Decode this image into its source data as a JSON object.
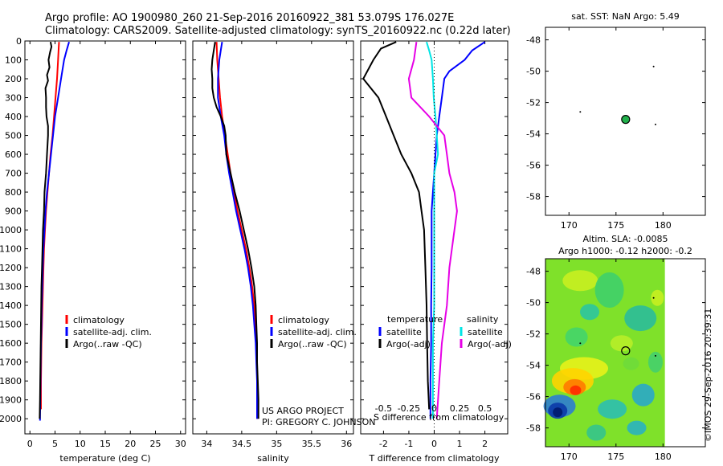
{
  "header": {
    "line1": "Argo profile: AO 1900980_260 21-Sep-2016 20160922_381 53.079S 176.027E",
    "line2": "Climatology: CARS2009. Satellite-adjusted climatology: synTS_20160922.nc (0.22d later)"
  },
  "watermark": "©IMOS 29-Sep-2016 20:39:31",
  "credit": {
    "line1": "US ARGO PROJECT",
    "line2": "PI: GREGORY C. JOHNSON"
  },
  "colors": {
    "climatology": "#ff0000",
    "satellite": "#0000ff",
    "argo": "#000000",
    "sat_diff_salinity": "#00e5e5",
    "argo_diff_salinity": "#e600e6"
  },
  "chart_data": [
    {
      "id": "temperature",
      "type": "line",
      "xlabel": "temperature (deg C)",
      "xlim": [
        -1,
        31
      ],
      "ylim": [
        2080,
        0
      ],
      "xticks": [
        0,
        5,
        10,
        15,
        20,
        25,
        30
      ],
      "yticks": [
        0,
        100,
        200,
        300,
        400,
        500,
        600,
        700,
        800,
        900,
        1000,
        1100,
        1200,
        1300,
        1400,
        1500,
        1600,
        1700,
        1800,
        1900,
        2000
      ],
      "legend": [
        "climatology",
        "satellite-adj. clim.",
        "Argo(..raw -QC)"
      ],
      "series": [
        {
          "name": "climatology",
          "color": "#ff0000",
          "points": [
            [
              5.8,
              5
            ],
            [
              5.7,
              50
            ],
            [
              5.6,
              100
            ],
            [
              5.4,
              200
            ],
            [
              5.1,
              300
            ],
            [
              4.8,
              400
            ],
            [
              4.5,
              500
            ],
            [
              4.1,
              600
            ],
            [
              3.8,
              700
            ],
            [
              3.5,
              800
            ],
            [
              3.2,
              900
            ],
            [
              3.0,
              1000
            ],
            [
              2.8,
              1100
            ],
            [
              2.7,
              1200
            ],
            [
              2.6,
              1300
            ],
            [
              2.5,
              1400
            ],
            [
              2.4,
              1500
            ],
            [
              2.3,
              1600
            ],
            [
              2.25,
              1700
            ],
            [
              2.2,
              1800
            ],
            [
              2.2,
              1950
            ]
          ]
        },
        {
          "name": "satellite-adj. clim.",
          "color": "#0000ff",
          "points": [
            [
              7.8,
              5
            ],
            [
              7.3,
              50
            ],
            [
              6.8,
              100
            ],
            [
              6.2,
              200
            ],
            [
              5.6,
              300
            ],
            [
              5.0,
              400
            ],
            [
              4.6,
              500
            ],
            [
              4.2,
              600
            ],
            [
              3.8,
              700
            ],
            [
              3.4,
              800
            ],
            [
              3.1,
              900
            ],
            [
              2.9,
              1000
            ],
            [
              2.7,
              1100
            ],
            [
              2.55,
              1200
            ],
            [
              2.45,
              1300
            ],
            [
              2.35,
              1400
            ],
            [
              2.3,
              1500
            ],
            [
              2.2,
              1600
            ],
            [
              2.15,
              1700
            ],
            [
              2.1,
              1800
            ],
            [
              2.05,
              1900
            ],
            [
              2.0,
              2010
            ]
          ]
        },
        {
          "name": "Argo(..raw -QC)",
          "color": "#000000",
          "points": [
            [
              4.1,
              5
            ],
            [
              4.3,
              30
            ],
            [
              4.0,
              60
            ],
            [
              3.7,
              100
            ],
            [
              3.9,
              140
            ],
            [
              3.4,
              180
            ],
            [
              3.6,
              210
            ],
            [
              3.1,
              250
            ],
            [
              3.2,
              300
            ],
            [
              3.2,
              350
            ],
            [
              3.3,
              400
            ],
            [
              3.6,
              450
            ],
            [
              3.6,
              500
            ],
            [
              3.4,
              600
            ],
            [
              3.2,
              700
            ],
            [
              2.9,
              800
            ],
            [
              2.8,
              900
            ],
            [
              2.6,
              1000
            ],
            [
              2.5,
              1100
            ],
            [
              2.4,
              1200
            ],
            [
              2.3,
              1300
            ],
            [
              2.25,
              1400
            ],
            [
              2.2,
              1500
            ],
            [
              2.15,
              1600
            ],
            [
              2.1,
              1700
            ],
            [
              2.05,
              1800
            ],
            [
              2.0,
              1900
            ],
            [
              1.95,
              2000
            ]
          ]
        }
      ]
    },
    {
      "id": "salinity",
      "type": "line",
      "xlabel": "salinity",
      "xlim": [
        33.8,
        36.1
      ],
      "ylim": [
        2080,
        0
      ],
      "xticks": [
        34,
        34.5,
        35,
        35.5,
        36
      ],
      "legend": [
        "climatology",
        "satellite-adj. clim.",
        "Argo(..raw -QC)"
      ],
      "series": [
        {
          "name": "climatology",
          "color": "#ff0000",
          "points": [
            [
              34.14,
              5
            ],
            [
              34.15,
              100
            ],
            [
              34.17,
              200
            ],
            [
              34.19,
              300
            ],
            [
              34.22,
              400
            ],
            [
              34.26,
              500
            ],
            [
              34.3,
              600
            ],
            [
              34.34,
              700
            ],
            [
              34.39,
              800
            ],
            [
              34.44,
              900
            ],
            [
              34.5,
              1000
            ],
            [
              34.56,
              1100
            ],
            [
              34.61,
              1200
            ],
            [
              34.65,
              1300
            ],
            [
              34.68,
              1400
            ],
            [
              34.7,
              1500
            ],
            [
              34.71,
              1600
            ],
            [
              34.72,
              1700
            ],
            [
              34.72,
              1800
            ],
            [
              34.72,
              1900
            ],
            [
              34.72,
              2000
            ]
          ]
        },
        {
          "name": "satellite-adj. clim.",
          "color": "#0000ff",
          "points": [
            [
              34.22,
              5
            ],
            [
              34.2,
              50
            ],
            [
              34.18,
              100
            ],
            [
              34.16,
              200
            ],
            [
              34.16,
              300
            ],
            [
              34.2,
              400
            ],
            [
              34.25,
              500
            ],
            [
              34.28,
              600
            ],
            [
              34.32,
              700
            ],
            [
              34.37,
              800
            ],
            [
              34.42,
              900
            ],
            [
              34.48,
              1000
            ],
            [
              34.54,
              1100
            ],
            [
              34.59,
              1200
            ],
            [
              34.63,
              1300
            ],
            [
              34.66,
              1400
            ],
            [
              34.68,
              1500
            ],
            [
              34.7,
              1600
            ],
            [
              34.71,
              1700
            ],
            [
              34.72,
              1800
            ],
            [
              34.72,
              1900
            ],
            [
              34.72,
              2000
            ]
          ]
        },
        {
          "name": "Argo(..raw -QC)",
          "color": "#000000",
          "points": [
            [
              34.12,
              5
            ],
            [
              34.1,
              50
            ],
            [
              34.08,
              100
            ],
            [
              34.07,
              150
            ],
            [
              34.08,
              200
            ],
            [
              34.08,
              250
            ],
            [
              34.1,
              300
            ],
            [
              34.14,
              350
            ],
            [
              34.2,
              400
            ],
            [
              34.25,
              450
            ],
            [
              34.27,
              500
            ],
            [
              34.28,
              600
            ],
            [
              34.34,
              700
            ],
            [
              34.4,
              800
            ],
            [
              34.47,
              900
            ],
            [
              34.53,
              1000
            ],
            [
              34.59,
              1100
            ],
            [
              34.64,
              1200
            ],
            [
              34.68,
              1300
            ],
            [
              34.7,
              1400
            ],
            [
              34.71,
              1500
            ],
            [
              34.72,
              1600
            ],
            [
              34.72,
              1700
            ],
            [
              34.73,
              1800
            ],
            [
              34.74,
              1900
            ],
            [
              34.74,
              2000
            ]
          ]
        }
      ]
    },
    {
      "id": "difference",
      "type": "line",
      "xlabel": "T difference from climatology",
      "xlabel_top": "S difference from climatology",
      "xlim": [
        -2.9,
        2.9
      ],
      "ylim": [
        2080,
        0
      ],
      "xticks": [
        -2,
        -1,
        0,
        1,
        2
      ],
      "xticks_top": [
        "-0.5",
        "-0.25",
        "0",
        "0.25",
        "0.5"
      ],
      "xticks_top_values": [
        -2,
        -1,
        0,
        1,
        2
      ],
      "legend_groups": [
        {
          "title": "temperature",
          "items": [
            "satellite",
            "Argo(-adj)"
          ]
        },
        {
          "title": "salinity",
          "items": [
            "satellite",
            "Argo(-adj)"
          ]
        }
      ],
      "series": [
        {
          "name": "temperature satellite",
          "color": "#0000ff",
          "points": [
            [
              2.0,
              5
            ],
            [
              1.5,
              50
            ],
            [
              1.2,
              100
            ],
            [
              0.6,
              160
            ],
            [
              0.4,
              200
            ],
            [
              0.3,
              300
            ],
            [
              0.2,
              400
            ],
            [
              0.1,
              500
            ],
            [
              0.05,
              600
            ],
            [
              0.0,
              700
            ],
            [
              -0.05,
              800
            ],
            [
              -0.1,
              900
            ],
            [
              -0.1,
              1000
            ],
            [
              -0.1,
              1200
            ],
            [
              -0.12,
              1400
            ],
            [
              -0.12,
              1600
            ],
            [
              -0.15,
              1800
            ],
            [
              -0.15,
              2000
            ]
          ]
        },
        {
          "name": "temperature Argo(-adj)",
          "color": "#000000",
          "points": [
            [
              -1.5,
              5
            ],
            [
              -2.1,
              40
            ],
            [
              -2.4,
              100
            ],
            [
              -2.8,
              200
            ],
            [
              -2.2,
              300
            ],
            [
              -1.9,
              400
            ],
            [
              -1.6,
              500
            ],
            [
              -1.3,
              600
            ],
            [
              -0.9,
              700
            ],
            [
              -0.6,
              800
            ],
            [
              -0.5,
              900
            ],
            [
              -0.4,
              1000
            ],
            [
              -0.35,
              1200
            ],
            [
              -0.3,
              1400
            ],
            [
              -0.28,
              1600
            ],
            [
              -0.25,
              1800
            ],
            [
              -0.2,
              1950
            ]
          ]
        },
        {
          "name": "salinity satellite",
          "color": "#00e5e5",
          "points": [
            [
              -0.3,
              5
            ],
            [
              -0.2,
              50
            ],
            [
              -0.1,
              100
            ],
            [
              -0.05,
              200
            ],
            [
              -0.02,
              300
            ],
            [
              0.05,
              400
            ],
            [
              0.1,
              500
            ],
            [
              0.15,
              600
            ],
            [
              0.0,
              700
            ],
            [
              0.0,
              800
            ],
            [
              0.0,
              1000
            ],
            [
              0.0,
              1200
            ],
            [
              0.0,
              1400
            ],
            [
              -0.05,
              1600
            ],
            [
              -0.05,
              1800
            ],
            [
              -0.05,
              2000
            ]
          ]
        },
        {
          "name": "salinity Argo(-adj)",
          "color": "#e600e6",
          "points": [
            [
              -0.7,
              5
            ],
            [
              -0.8,
              100
            ],
            [
              -1.0,
              200
            ],
            [
              -0.9,
              300
            ],
            [
              -0.2,
              400
            ],
            [
              0.4,
              500
            ],
            [
              0.5,
              600
            ],
            [
              0.6,
              700
            ],
            [
              0.8,
              800
            ],
            [
              0.9,
              900
            ],
            [
              0.8,
              1000
            ],
            [
              0.6,
              1200
            ],
            [
              0.5,
              1400
            ],
            [
              0.3,
              1600
            ],
            [
              0.2,
              1800
            ],
            [
              0.1,
              2000
            ]
          ]
        }
      ]
    },
    {
      "id": "sst_map",
      "type": "scatter",
      "title": "sat. SST: NaN Argo: 5.49",
      "xlim": [
        167.5,
        184.5
      ],
      "ylim": [
        -59.2,
        -47.2
      ],
      "xticks": [
        170,
        175,
        180
      ],
      "yticks": [
        -48,
        -50,
        -52,
        -54,
        -56,
        -58
      ],
      "argo_position": [
        176.027,
        -53.079
      ]
    },
    {
      "id": "sla_map",
      "type": "heatmap",
      "title_line1": "Altim. SLA: -0.0085",
      "title_line2": "Argo h1000: -0.12 h2000: -0.2",
      "xlim": [
        167.5,
        184.5
      ],
      "ylim": [
        -59.2,
        -47.2
      ],
      "xticks": [
        170,
        175,
        180
      ],
      "yticks": [
        -48,
        -50,
        -52,
        -54,
        -56,
        -58
      ],
      "argo_position": [
        176.027,
        -53.079
      ]
    }
  ]
}
